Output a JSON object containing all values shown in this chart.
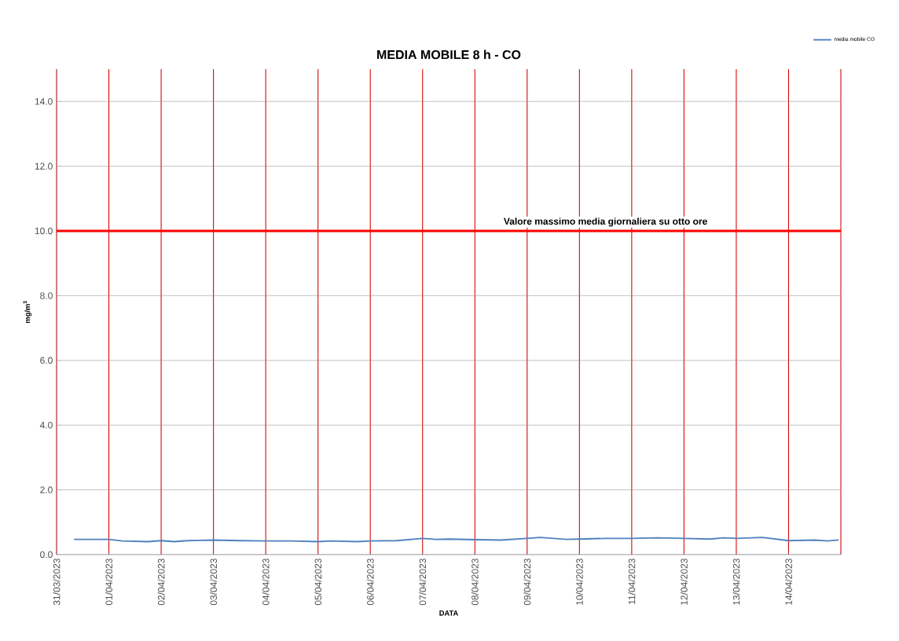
{
  "chart_data": {
    "type": "line",
    "title": "MEDIA MOBILE 8 h - CO",
    "xlabel": "DATA",
    "ylabel": "mg/m$^{3}$",
    "x": [
      "2023-03-31T08:00",
      "2023-04-01T00:00",
      "2023-04-01T06:00",
      "2023-04-01T18:00",
      "2023-04-02T00:00",
      "2023-04-02T06:00",
      "2023-04-02T12:00",
      "2023-04-03T00:00",
      "2023-04-03T12:00",
      "2023-04-04T00:00",
      "2023-04-04T12:00",
      "2023-04-05T00:00",
      "2023-04-05T06:00",
      "2023-04-05T18:00",
      "2023-04-06T00:00",
      "2023-04-06T12:00",
      "2023-04-07T00:00",
      "2023-04-07T06:00",
      "2023-04-07T12:00",
      "2023-04-08T00:00",
      "2023-04-08T12:00",
      "2023-04-09T00:00",
      "2023-04-09T06:00",
      "2023-04-09T18:00",
      "2023-04-10T00:00",
      "2023-04-10T12:00",
      "2023-04-11T00:00",
      "2023-04-11T12:00",
      "2023-04-12T00:00",
      "2023-04-12T12:00",
      "2023-04-12T18:00",
      "2023-04-13T00:00",
      "2023-04-13T12:00",
      "2023-04-13T18:00",
      "2023-04-14T00:00",
      "2023-04-14T12:00",
      "2023-04-14T18:00",
      "2023-04-14T23:00"
    ],
    "series": [
      {
        "name": "media mobile CO",
        "color": "#4f81bd",
        "values": [
          0.47,
          0.47,
          0.42,
          0.4,
          0.43,
          0.4,
          0.43,
          0.45,
          0.43,
          0.42,
          0.42,
          0.4,
          0.42,
          0.4,
          0.42,
          0.43,
          0.5,
          0.47,
          0.48,
          0.46,
          0.45,
          0.5,
          0.53,
          0.47,
          0.48,
          0.5,
          0.5,
          0.52,
          0.5,
          0.48,
          0.52,
          0.5,
          0.53,
          0.48,
          0.43,
          0.45,
          0.42,
          0.45
        ]
      }
    ],
    "xlim": [
      "2023-03-31",
      "2023-04-15"
    ],
    "xticks": [
      {
        "value": "2023-03-31",
        "label": "31/03/2023"
      },
      {
        "value": "2023-04-01",
        "label": "01/04/2023"
      },
      {
        "value": "2023-04-02",
        "label": "02/04/2023"
      },
      {
        "value": "2023-04-03",
        "label": "03/04/2023"
      },
      {
        "value": "2023-04-04",
        "label": "04/04/2023"
      },
      {
        "value": "2023-04-05",
        "label": "05/04/2023"
      },
      {
        "value": "2023-04-06",
        "label": "06/04/2023"
      },
      {
        "value": "2023-04-07",
        "label": "07/04/2023"
      },
      {
        "value": "2023-04-08",
        "label": "08/04/2023"
      },
      {
        "value": "2023-04-09",
        "label": "09/04/2023"
      },
      {
        "value": "2023-04-10",
        "label": "10/04/2023"
      },
      {
        "value": "2023-04-11",
        "label": "11/04/2023"
      },
      {
        "value": "2023-04-12",
        "label": "12/04/2023"
      },
      {
        "value": "2023-04-13",
        "label": "13/04/2023"
      },
      {
        "value": "2023-04-14",
        "label": "14/04/2023"
      },
      {
        "value": "2023-04-15",
        "label": null
      }
    ],
    "ylim": [
      0,
      15
    ],
    "yticks": [
      {
        "value": 0,
        "label": "0.0"
      },
      {
        "value": 2,
        "label": "2.0"
      },
      {
        "value": 4,
        "label": "4.0"
      },
      {
        "value": 6,
        "label": "6.0"
      },
      {
        "value": 8,
        "label": "8.0"
      },
      {
        "value": 10,
        "label": "10.0"
      },
      {
        "value": 12,
        "label": "12.0"
      },
      {
        "value": 14,
        "label": "14.0"
      }
    ],
    "ref_lines": [
      {
        "axis": "y",
        "value": 10,
        "label": "Valore massimo media giornaliera su otto ore",
        "color": "#ff0000"
      }
    ],
    "grid": true,
    "legend": "top right",
    "marker": "none",
    "line_style": "solid"
  }
}
